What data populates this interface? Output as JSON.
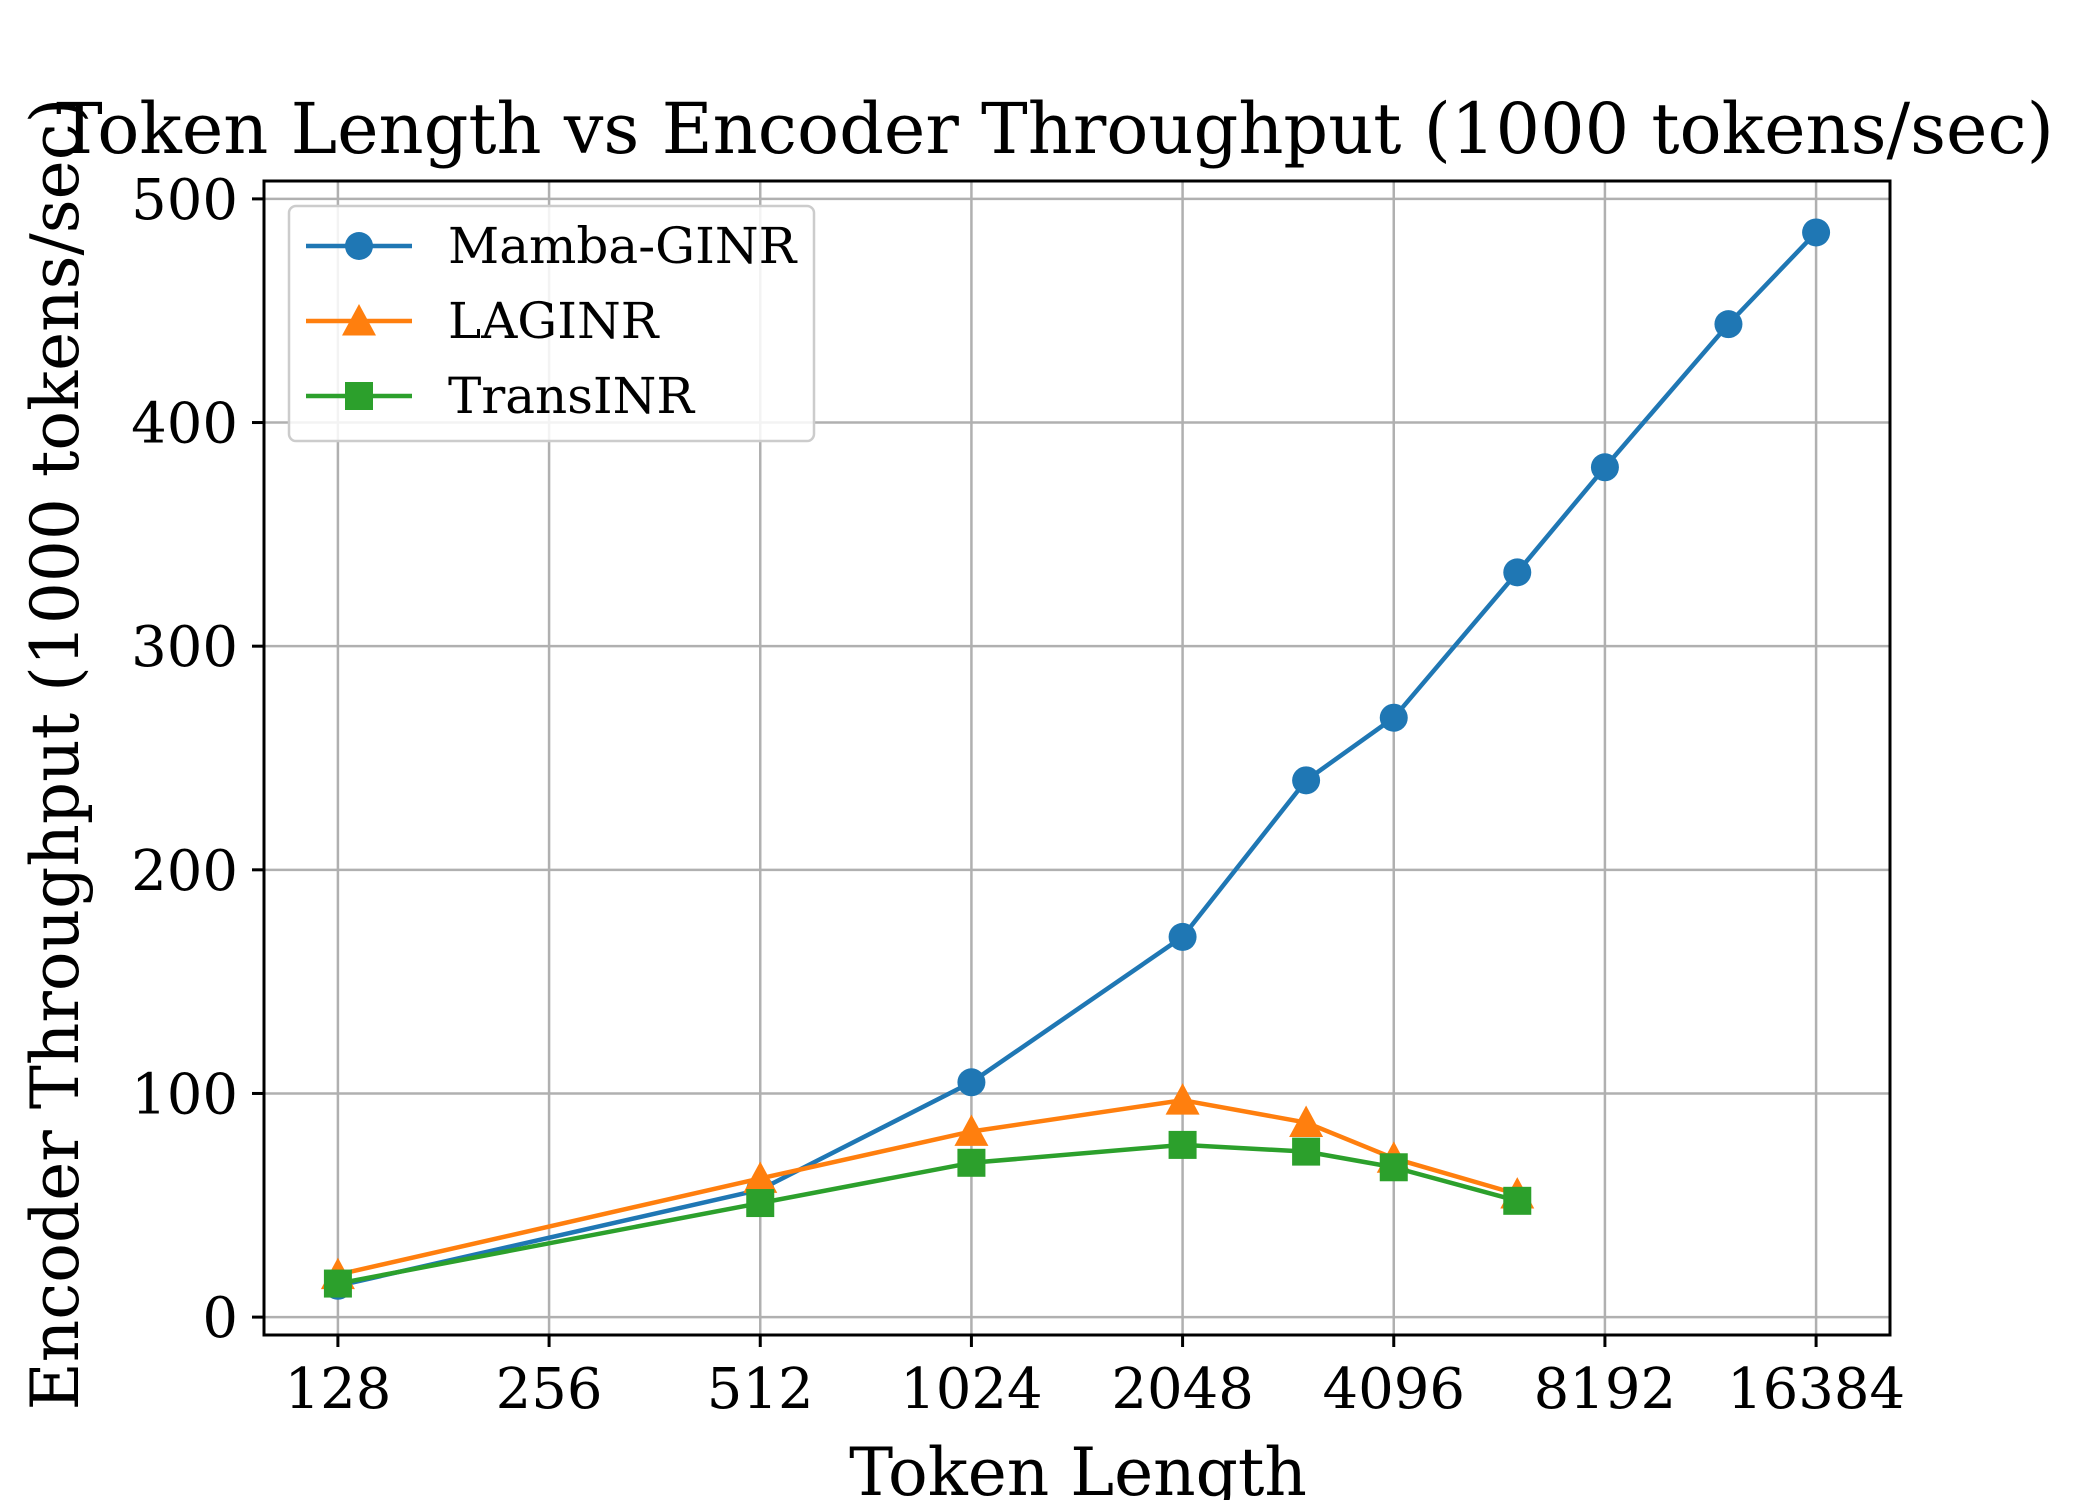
{
  "chart_data": {
    "type": "line",
    "title": "Token Length vs Encoder Throughput (1000 tokens/sec)",
    "xlabel": "Token Length",
    "ylabel": "Encoder Throughput (1000 tokens/sec)",
    "x_scale": "log2",
    "x_ticks": [
      128,
      256,
      512,
      1024,
      2048,
      4096,
      8192,
      16384
    ],
    "y_ticks": [
      0,
      100,
      200,
      300,
      400,
      500
    ],
    "ylim": [
      -8,
      508
    ],
    "grid": true,
    "legend_position": "top-left",
    "series": [
      {
        "name": "Mamba-GINR",
        "color": "#1f77b4",
        "marker": "circle",
        "x": [
          128,
          512,
          1024,
          2048,
          3072,
          4096,
          6144,
          8192,
          12288,
          16384
        ],
        "y": [
          14,
          57,
          105,
          170,
          240,
          268,
          333,
          380,
          444,
          485
        ]
      },
      {
        "name": "LAGINR",
        "color": "#ff7f0e",
        "marker": "triangle",
        "x": [
          128,
          512,
          1024,
          2048,
          3072,
          4096,
          6144
        ],
        "y": [
          19,
          62,
          83,
          97,
          87,
          71,
          55
        ]
      },
      {
        "name": "TransINR",
        "color": "#2ca02c",
        "marker": "square",
        "x": [
          128,
          512,
          1024,
          2048,
          3072,
          4096,
          6144
        ],
        "y": [
          15,
          51,
          69,
          77,
          74,
          67,
          52
        ]
      }
    ]
  }
}
